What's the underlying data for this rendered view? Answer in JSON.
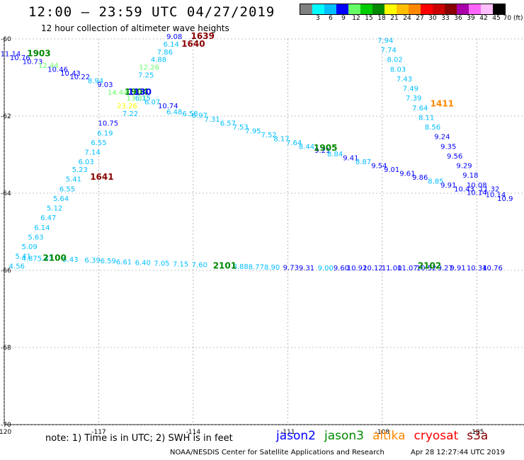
{
  "title": "12:00 – 23:59 UTC 04/27/2019",
  "subtitle": "12 hour collection of altimeter wave heights",
  "colorbar": {
    "colors": [
      "#808080",
      "#00ffff",
      "#00bfff",
      "#0000ff",
      "#66ff66",
      "#00cc00",
      "#008800",
      "#ffff00",
      "#ffbf00",
      "#ff8800",
      "#ff0000",
      "#cc0000",
      "#880000",
      "#aa00aa",
      "#ff66ff",
      "#ffbfff",
      "#000000"
    ],
    "labels": [
      "3",
      "6",
      "9",
      "12",
      "15",
      "18",
      "21",
      "24",
      "27",
      "30",
      "33",
      "36",
      "39",
      "42",
      "45",
      "70 (ft)"
    ]
  },
  "map": {
    "lon_range": [
      -120,
      -103.5
    ],
    "lat_range": [
      -70,
      -60
    ],
    "lon_ticks": [
      -120,
      -117,
      -114,
      -111,
      -108,
      -105
    ],
    "lat_ticks": [
      -60,
      -62,
      -64,
      -66,
      -68,
      -70
    ],
    "lon_tick_labels": [
      "-120",
      "-117",
      "-114",
      "-111",
      "-108",
      "-105"
    ],
    "lat_tick_labels": [
      "-60",
      "-62",
      "-64",
      "-66",
      "-68",
      "-70"
    ]
  },
  "time_labels": [
    {
      "text": "1903",
      "lon": -118.9,
      "lat": -60.45,
      "color": "#008800"
    },
    {
      "text": "1639",
      "lon": -113.7,
      "lat": -60.0,
      "color": "#880000"
    },
    {
      "text": "1640",
      "lon": -114.0,
      "lat": -60.2,
      "color": "#880000"
    },
    {
      "text": "1904",
      "lon": -115.8,
      "lat": -61.45,
      "color": "#008800"
    },
    {
      "text": "1130",
      "lon": -115.7,
      "lat": -61.45,
      "color": "#0000ff"
    },
    {
      "text": "1411",
      "lon": -106.1,
      "lat": -61.75,
      "color": "#ff8800"
    },
    {
      "text": "1905",
      "lon": -109.8,
      "lat": -62.9,
      "color": "#008800"
    },
    {
      "text": "1641",
      "lon": -116.9,
      "lat": -63.65,
      "color": "#880000"
    },
    {
      "text": "2100",
      "lon": -118.4,
      "lat": -65.75,
      "color": "#008800"
    },
    {
      "text": "2101",
      "lon": -113.0,
      "lat": -65.95,
      "color": "#008800"
    },
    {
      "text": "2102",
      "lon": -106.5,
      "lat": -65.95,
      "color": "#008800"
    }
  ],
  "swh_values": [
    {
      "text": "11.14",
      "lon": -119.8,
      "lat": -60.45,
      "color": "#0000ff"
    },
    {
      "text": "10.76",
      "lon": -119.5,
      "lat": -60.55,
      "color": "#0000ff"
    },
    {
      "text": "10.73",
      "lon": -119.1,
      "lat": -60.65,
      "color": "#0000ff"
    },
    {
      "text": "12.44",
      "lon": -118.6,
      "lat": -60.75,
      "color": "#66ff66"
    },
    {
      "text": "10.46",
      "lon": -118.3,
      "lat": -60.85,
      "color": "#0000ff"
    },
    {
      "text": "10.43",
      "lon": -117.9,
      "lat": -60.95,
      "color": "#0000ff"
    },
    {
      "text": "10.22",
      "lon": -117.6,
      "lat": -61.05,
      "color": "#0000ff"
    },
    {
      "text": "8.94",
      "lon": -117.1,
      "lat": -61.15,
      "color": "#00bfff"
    },
    {
      "text": "9.03",
      "lon": -116.8,
      "lat": -61.25,
      "color": "#0000ff"
    },
    {
      "text": "9.08",
      "lon": -114.6,
      "lat": -60.0,
      "color": "#0000ff"
    },
    {
      "text": "6.14",
      "lon": -114.7,
      "lat": -60.2,
      "color": "#00bfff"
    },
    {
      "text": "7.86",
      "lon": -114.9,
      "lat": -60.4,
      "color": "#00bfff"
    },
    {
      "text": "4.88",
      "lon": -115.1,
      "lat": -60.6,
      "color": "#00bfff"
    },
    {
      "text": "12.26",
      "lon": -115.4,
      "lat": -60.8,
      "color": "#66ff66"
    },
    {
      "text": "7.25",
      "lon": -115.5,
      "lat": -61.0,
      "color": "#00bfff"
    },
    {
      "text": "14.44",
      "lon": -116.4,
      "lat": -61.45,
      "color": "#66ff66"
    },
    {
      "text": "13.31",
      "lon": -115.8,
      "lat": -61.6,
      "color": "#66ff66"
    },
    {
      "text": "6.15",
      "lon": -115.6,
      "lat": -61.6,
      "color": "#00bfff"
    },
    {
      "text": "6.07",
      "lon": -115.3,
      "lat": -61.7,
      "color": "#00bfff"
    },
    {
      "text": "10.74",
      "lon": -114.8,
      "lat": -61.8,
      "color": "#0000ff"
    },
    {
      "text": "23.26",
      "lon": -116.1,
      "lat": -61.8,
      "color": "#ffff00"
    },
    {
      "text": "7.22",
      "lon": -116.0,
      "lat": -62.0,
      "color": "#00bfff"
    },
    {
      "text": "10.75",
      "lon": -116.7,
      "lat": -62.25,
      "color": "#0000ff"
    },
    {
      "text": "6.19",
      "lon": -116.8,
      "lat": -62.5,
      "color": "#00bfff"
    },
    {
      "text": "6.55",
      "lon": -117.0,
      "lat": -62.75,
      "color": "#00bfff"
    },
    {
      "text": "7.14",
      "lon": -117.2,
      "lat": -63.0,
      "color": "#00bfff"
    },
    {
      "text": "6.03",
      "lon": -117.4,
      "lat": -63.25,
      "color": "#00bfff"
    },
    {
      "text": "5.23",
      "lon": -117.6,
      "lat": -63.45,
      "color": "#00bfff"
    },
    {
      "text": "5.41",
      "lon": -117.8,
      "lat": -63.7,
      "color": "#00bfff"
    },
    {
      "text": "6.55",
      "lon": -118.0,
      "lat": -63.95,
      "color": "#00bfff"
    },
    {
      "text": "5.64",
      "lon": -118.2,
      "lat": -64.2,
      "color": "#00bfff"
    },
    {
      "text": "5.12",
      "lon": -118.4,
      "lat": -64.45,
      "color": "#00bfff"
    },
    {
      "text": "6.47",
      "lon": -118.6,
      "lat": -64.7,
      "color": "#00bfff"
    },
    {
      "text": "6.14",
      "lon": -118.8,
      "lat": -64.95,
      "color": "#00bfff"
    },
    {
      "text": "5.63",
      "lon": -119.0,
      "lat": -65.2,
      "color": "#00bfff"
    },
    {
      "text": "5.09",
      "lon": -119.2,
      "lat": -65.45,
      "color": "#00bfff"
    },
    {
      "text": "5.41",
      "lon": -119.4,
      "lat": -65.7,
      "color": "#00bfff"
    },
    {
      "text": "4.56",
      "lon": -119.6,
      "lat": -65.95,
      "color": "#00bfff"
    },
    {
      "text": "4.87",
      "lon": -119.2,
      "lat": -65.75,
      "color": "#00bfff"
    },
    {
      "text": "5.43",
      "lon": -118.7,
      "lat": -65.75,
      "color": "#00bfff"
    },
    {
      "text": "5.43",
      "lon": -117.9,
      "lat": -65.78,
      "color": "#00bfff"
    },
    {
      "text": "6.39",
      "lon": -117.2,
      "lat": -65.8,
      "color": "#00bfff"
    },
    {
      "text": "6.59",
      "lon": -116.7,
      "lat": -65.82,
      "color": "#00bfff"
    },
    {
      "text": "6.61",
      "lon": -116.2,
      "lat": -65.84,
      "color": "#00bfff"
    },
    {
      "text": "6.40",
      "lon": -115.6,
      "lat": -65.86,
      "color": "#00bfff"
    },
    {
      "text": "7.05",
      "lon": -115.0,
      "lat": -65.88,
      "color": "#00bfff"
    },
    {
      "text": "7.15",
      "lon": -114.4,
      "lat": -65.9,
      "color": "#00bfff"
    },
    {
      "text": "7.60",
      "lon": -113.8,
      "lat": -65.92,
      "color": "#00bfff"
    },
    {
      "text": "8.88",
      "lon": -112.5,
      "lat": -65.96,
      "color": "#00bfff"
    },
    {
      "text": "8.77",
      "lon": -112.0,
      "lat": -65.97,
      "color": "#00bfff"
    },
    {
      "text": "8.90",
      "lon": -111.5,
      "lat": -65.98,
      "color": "#00bfff"
    },
    {
      "text": "9.73",
      "lon": -110.9,
      "lat": -65.99,
      "color": "#0000ff"
    },
    {
      "text": "9.31",
      "lon": -110.4,
      "lat": -66.0,
      "color": "#0000ff"
    },
    {
      "text": "9.00",
      "lon": -109.8,
      "lat": -66.0,
      "color": "#00bfff"
    },
    {
      "text": "9.60",
      "lon": -109.3,
      "lat": -66.0,
      "color": "#0000ff"
    },
    {
      "text": "10.92",
      "lon": -108.8,
      "lat": -66.0,
      "color": "#0000ff"
    },
    {
      "text": "10.12",
      "lon": -108.3,
      "lat": -66.0,
      "color": "#0000ff"
    },
    {
      "text": "11.00",
      "lon": -107.7,
      "lat": -66.0,
      "color": "#0000ff"
    },
    {
      "text": "11.07",
      "lon": -107.2,
      "lat": -66.0,
      "color": "#0000ff"
    },
    {
      "text": "10.52",
      "lon": -106.6,
      "lat": -66.0,
      "color": "#0000ff"
    },
    {
      "text": "9.27",
      "lon": -106.0,
      "lat": -66.0,
      "color": "#0000ff"
    },
    {
      "text": "9.91",
      "lon": -105.6,
      "lat": -66.0,
      "color": "#0000ff"
    },
    {
      "text": "10.34",
      "lon": -105.0,
      "lat": -66.0,
      "color": "#0000ff"
    },
    {
      "text": "10.76",
      "lon": -104.5,
      "lat": -66.0,
      "color": "#0000ff"
    },
    {
      "text": "6.48",
      "lon": -114.6,
      "lat": -61.95,
      "color": "#00bfff"
    },
    {
      "text": "6.58",
      "lon": -114.1,
      "lat": -62.0,
      "color": "#00bfff"
    },
    {
      "text": "6.97",
      "lon": -113.8,
      "lat": -62.05,
      "color": "#00bfff"
    },
    {
      "text": "7.31",
      "lon": -113.4,
      "lat": -62.15,
      "color": "#00bfff"
    },
    {
      "text": "6.57",
      "lon": -112.9,
      "lat": -62.25,
      "color": "#00bfff"
    },
    {
      "text": "7.53",
      "lon": -112.5,
      "lat": -62.35,
      "color": "#00bfff"
    },
    {
      "text": "7.95",
      "lon": -112.1,
      "lat": -62.45,
      "color": "#00bfff"
    },
    {
      "text": "7.52",
      "lon": -111.6,
      "lat": -62.55,
      "color": "#00bfff"
    },
    {
      "text": "8.17",
      "lon": -111.2,
      "lat": -62.65,
      "color": "#00bfff"
    },
    {
      "text": "7.64",
      "lon": -110.8,
      "lat": -62.75,
      "color": "#00bfff"
    },
    {
      "text": "8.44",
      "lon": -110.4,
      "lat": -62.85,
      "color": "#00bfff"
    },
    {
      "text": "9.21",
      "lon": -109.9,
      "lat": -62.95,
      "color": "#0000ff"
    },
    {
      "text": "8.84",
      "lon": -109.5,
      "lat": -63.05,
      "color": "#00bfff"
    },
    {
      "text": "9.41",
      "lon": -109.0,
      "lat": -63.15,
      "color": "#0000ff"
    },
    {
      "text": "8.87",
      "lon": -108.6,
      "lat": -63.25,
      "color": "#00bfff"
    },
    {
      "text": "9.54",
      "lon": -108.1,
      "lat": -63.35,
      "color": "#0000ff"
    },
    {
      "text": "9.01",
      "lon": -107.7,
      "lat": -63.45,
      "color": "#0000ff"
    },
    {
      "text": "9.61",
      "lon": -107.2,
      "lat": -63.55,
      "color": "#0000ff"
    },
    {
      "text": "9.86",
      "lon": -106.8,
      "lat": -63.65,
      "color": "#0000ff"
    },
    {
      "text": "8.85",
      "lon": -106.3,
      "lat": -63.75,
      "color": "#00bfff"
    },
    {
      "text": "9.91",
      "lon": -105.9,
      "lat": -63.85,
      "color": "#0000ff"
    },
    {
      "text": "10.43",
      "lon": -105.4,
      "lat": -63.95,
      "color": "#0000ff"
    },
    {
      "text": "10.14",
      "lon": -105.0,
      "lat": -64.05,
      "color": "#0000ff"
    },
    {
      "text": "10.14",
      "lon": -104.4,
      "lat": -64.1,
      "color": "#0000ff"
    },
    {
      "text": "7.94",
      "lon": -107.9,
      "lat": -60.1,
      "color": "#00bfff"
    },
    {
      "text": "7.74",
      "lon": -107.8,
      "lat": -60.35,
      "color": "#00bfff"
    },
    {
      "text": "8.02",
      "lon": -107.6,
      "lat": -60.6,
      "color": "#00bfff"
    },
    {
      "text": "8.03",
      "lon": -107.5,
      "lat": -60.85,
      "color": "#00bfff"
    },
    {
      "text": "7.43",
      "lon": -107.3,
      "lat": -61.1,
      "color": "#00bfff"
    },
    {
      "text": "7.49",
      "lon": -107.1,
      "lat": -61.35,
      "color": "#00bfff"
    },
    {
      "text": "7.39",
      "lon": -107.0,
      "lat": -61.6,
      "color": "#00bfff"
    },
    {
      "text": "7.64",
      "lon": -106.8,
      "lat": -61.85,
      "color": "#00bfff"
    },
    {
      "text": "8.11",
      "lon": -106.6,
      "lat": -62.1,
      "color": "#00bfff"
    },
    {
      "text": "8.56",
      "lon": -106.4,
      "lat": -62.35,
      "color": "#00bfff"
    },
    {
      "text": "9.24",
      "lon": -106.1,
      "lat": -62.6,
      "color": "#0000ff"
    },
    {
      "text": "9.35",
      "lon": -105.9,
      "lat": -62.85,
      "color": "#0000ff"
    },
    {
      "text": "9.56",
      "lon": -105.7,
      "lat": -63.1,
      "color": "#0000ff"
    },
    {
      "text": "9.29",
      "lon": -105.4,
      "lat": -63.35,
      "color": "#0000ff"
    },
    {
      "text": "9.18",
      "lon": -105.2,
      "lat": -63.6,
      "color": "#0000ff"
    },
    {
      "text": "10.08",
      "lon": -105.0,
      "lat": -63.85,
      "color": "#0000ff"
    },
    {
      "text": "11.32",
      "lon": -104.6,
      "lat": -63.95,
      "color": "#0000ff"
    },
    {
      "text": "10.9",
      "lon": -104.1,
      "lat": -64.2,
      "color": "#0000ff"
    }
  ],
  "note": "note:  1) Time is in UTC;  2) SWH is in feet",
  "satellites": [
    {
      "name": "jason2",
      "color": "#0000ff"
    },
    {
      "name": "jason3",
      "color": "#008800"
    },
    {
      "name": "altika",
      "color": "#ff8800"
    },
    {
      "name": "cryosat",
      "color": "#ff0000"
    },
    {
      "name": "s3a",
      "color": "#880000"
    }
  ],
  "credit": "NOAA/NESDIS Center for Satellite Applications and Research",
  "timestamp": "Apr 28 12:27:44 UTC 2019"
}
